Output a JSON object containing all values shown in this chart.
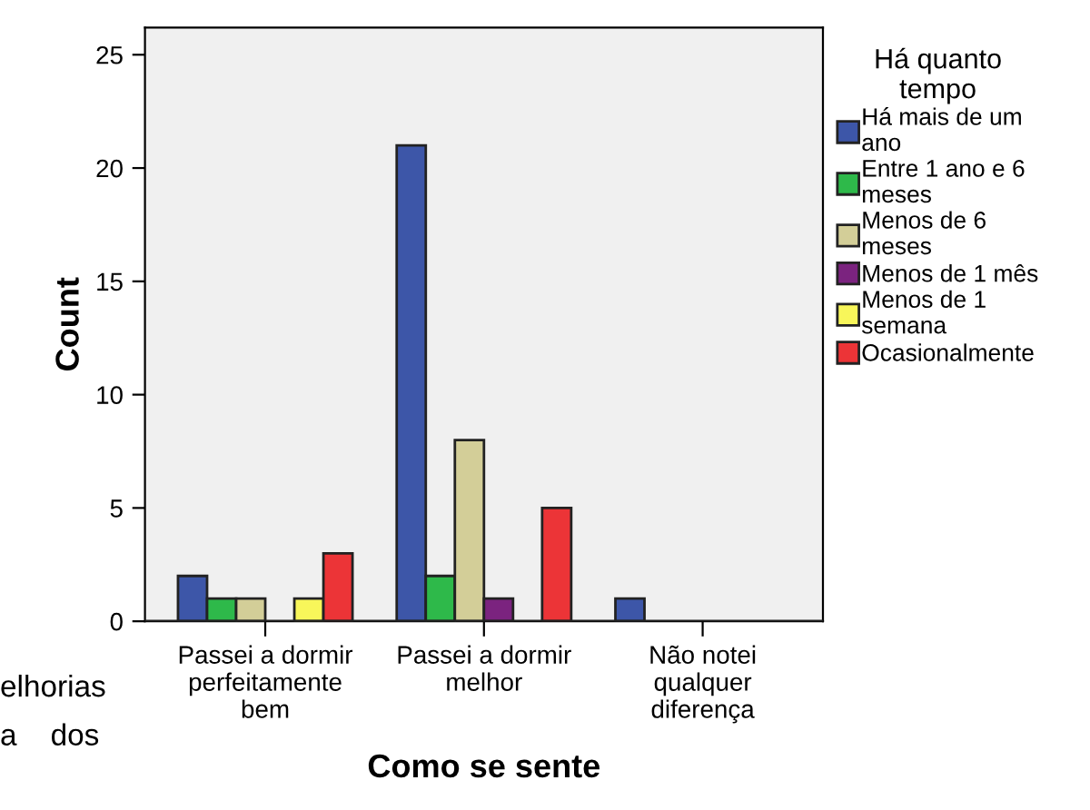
{
  "chart_data": {
    "type": "bar",
    "xlabel": "Como se sente",
    "ylabel": "Count",
    "legend_title": "Há quanto\ntempo",
    "categories": [
      "Passei a dormir\nperfeitamente\nbem",
      "Passei a dormir\nmelhor",
      "Não notei\nqualquer\ndiferença"
    ],
    "series": [
      {
        "name": "Há mais de um\nano",
        "color": "#3d56a8",
        "values": [
          2,
          21,
          1
        ]
      },
      {
        "name": "Entre 1 ano e 6\nmeses",
        "color": "#2eb94a",
        "values": [
          1,
          2,
          null
        ]
      },
      {
        "name": "Menos de 6\nmeses",
        "color": "#d3ce98",
        "values": [
          1,
          8,
          null
        ]
      },
      {
        "name": "Menos de 1 mês",
        "color": "#7b237f",
        "values": [
          null,
          1,
          null
        ]
      },
      {
        "name": "Menos de 1\nsemana",
        "color": "#f8f65a",
        "values": [
          1,
          null,
          null
        ]
      },
      {
        "name": "Ocasionalmente",
        "color": "#ec3437",
        "values": [
          3,
          5,
          null
        ]
      }
    ],
    "ylim": [
      0,
      26.2
    ],
    "yticks": [
      0,
      5,
      10,
      15,
      20,
      25
    ],
    "grid": false,
    "legend": "right",
    "annotations": [
      "elhorias",
      "a    dos"
    ]
  }
}
